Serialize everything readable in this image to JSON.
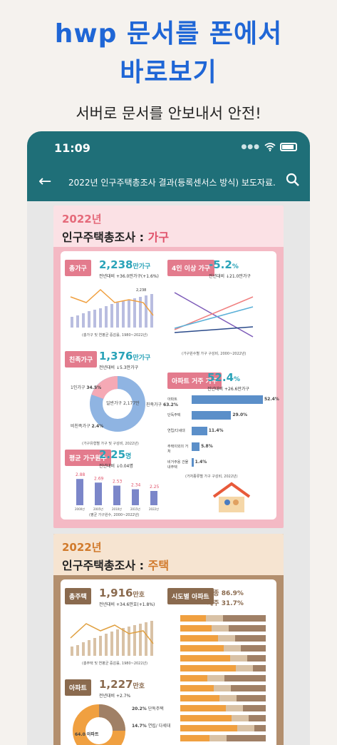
{
  "promo": {
    "title_line1": "hwp 문서를 폰에서",
    "title_line2": "바로보기",
    "subtitle": "서버로 문서를 안보내서 안전!"
  },
  "status_bar": {
    "time": "11:09"
  },
  "app_bar": {
    "title": "2022년 인구주택총조사 결과(등록센서스 방식) 보도자료.h..."
  },
  "page1": {
    "year": "2022년",
    "title": "인구주택총조사 : ",
    "title_accent": "가구",
    "households": {
      "tag": "총가구",
      "value": "2,238",
      "unit": "만가구",
      "change": "전년대비 +36.0만가구(+1.6%)",
      "caption": "(총가구 및 연평균 증감률, 1980~2022년)"
    },
    "four_plus": {
      "tag": "4인 이상 가구",
      "value": "-5.2",
      "unit": "%",
      "change": "전년대비 ↓21.0만가구",
      "caption": "(가구원수별 가구 구성비, 2000~2022년)"
    },
    "relative": {
      "tag": "친족가구",
      "value": "1,376",
      "unit": "만가구",
      "change": "전년대비 ↓5.3만가구",
      "donut_center": "일반가구 2,177만",
      "one": "1인가구",
      "one_pct": "34.5%",
      "nonrel": "비친족가구",
      "nonrel_pct": "2.4%",
      "rel": "친족가구",
      "rel_pct": "63.2%",
      "caption": "(가구유형별 가구 및 구성비, 2022년)"
    },
    "apartment": {
      "tag": "아파트 거주 가구",
      "value": "52.4",
      "unit": "%",
      "change": "전년대비 +26.6만가구",
      "rows": [
        {
          "label": "아파트",
          "value": "52.4%"
        },
        {
          "label": "단독주택",
          "value": "29.0%"
        },
        {
          "label": "연립/다세대",
          "value": "11.4%"
        },
        {
          "label": "주택이외의 거처",
          "value": "5.8%"
        },
        {
          "label": "비거주용 건물내주택",
          "value": "1.4%"
        }
      ],
      "caption": "(거처종류별 가구 구성비, 2022년)"
    },
    "avg": {
      "tag": "평균 가구원수",
      "value": "2.25",
      "unit": "명",
      "change": "전년대비 ↓0.04명",
      "bars": [
        "2.88",
        "2.69",
        "2.53",
        "2.34",
        "2.25"
      ],
      "years": [
        "2000년",
        "2005년",
        "2010년",
        "2015년",
        "2022년"
      ],
      "caption": "(평균 가구원수, 2000~2022년)"
    }
  },
  "page2": {
    "year": "2022년",
    "title": "인구주택총조사 : ",
    "title_accent": "주택",
    "houses": {
      "tag": "총주택",
      "value": "1,916",
      "unit": "만호",
      "change": "전년대비 +34.6만호(+1.8%)",
      "caption": "(총주택 및 연평균 증감률, 1980~2022년)"
    },
    "region": {
      "tag": "시도별 아파트",
      "seoul": "세종 86.9%",
      "jeju": "제주 31.7%"
    },
    "apt": {
      "tag": "아파트",
      "value": "1,227",
      "unit": "만호",
      "change": "전년대비 +2.7%",
      "pct1": "64.0",
      "pct1_label": "아파트",
      "pct2": "20.2%",
      "pct2_label": "단독주택",
      "pct3": "14.7%",
      "pct3_label": "연립/ 다세대"
    }
  },
  "chart_data": {
    "type": "bar",
    "categories": [
      "2000년",
      "2005년",
      "2010년",
      "2015년",
      "2022년"
    ],
    "values": [
      2.88,
      2.69,
      2.53,
      2.34,
      2.25
    ],
    "title": "평균 가구원수"
  }
}
